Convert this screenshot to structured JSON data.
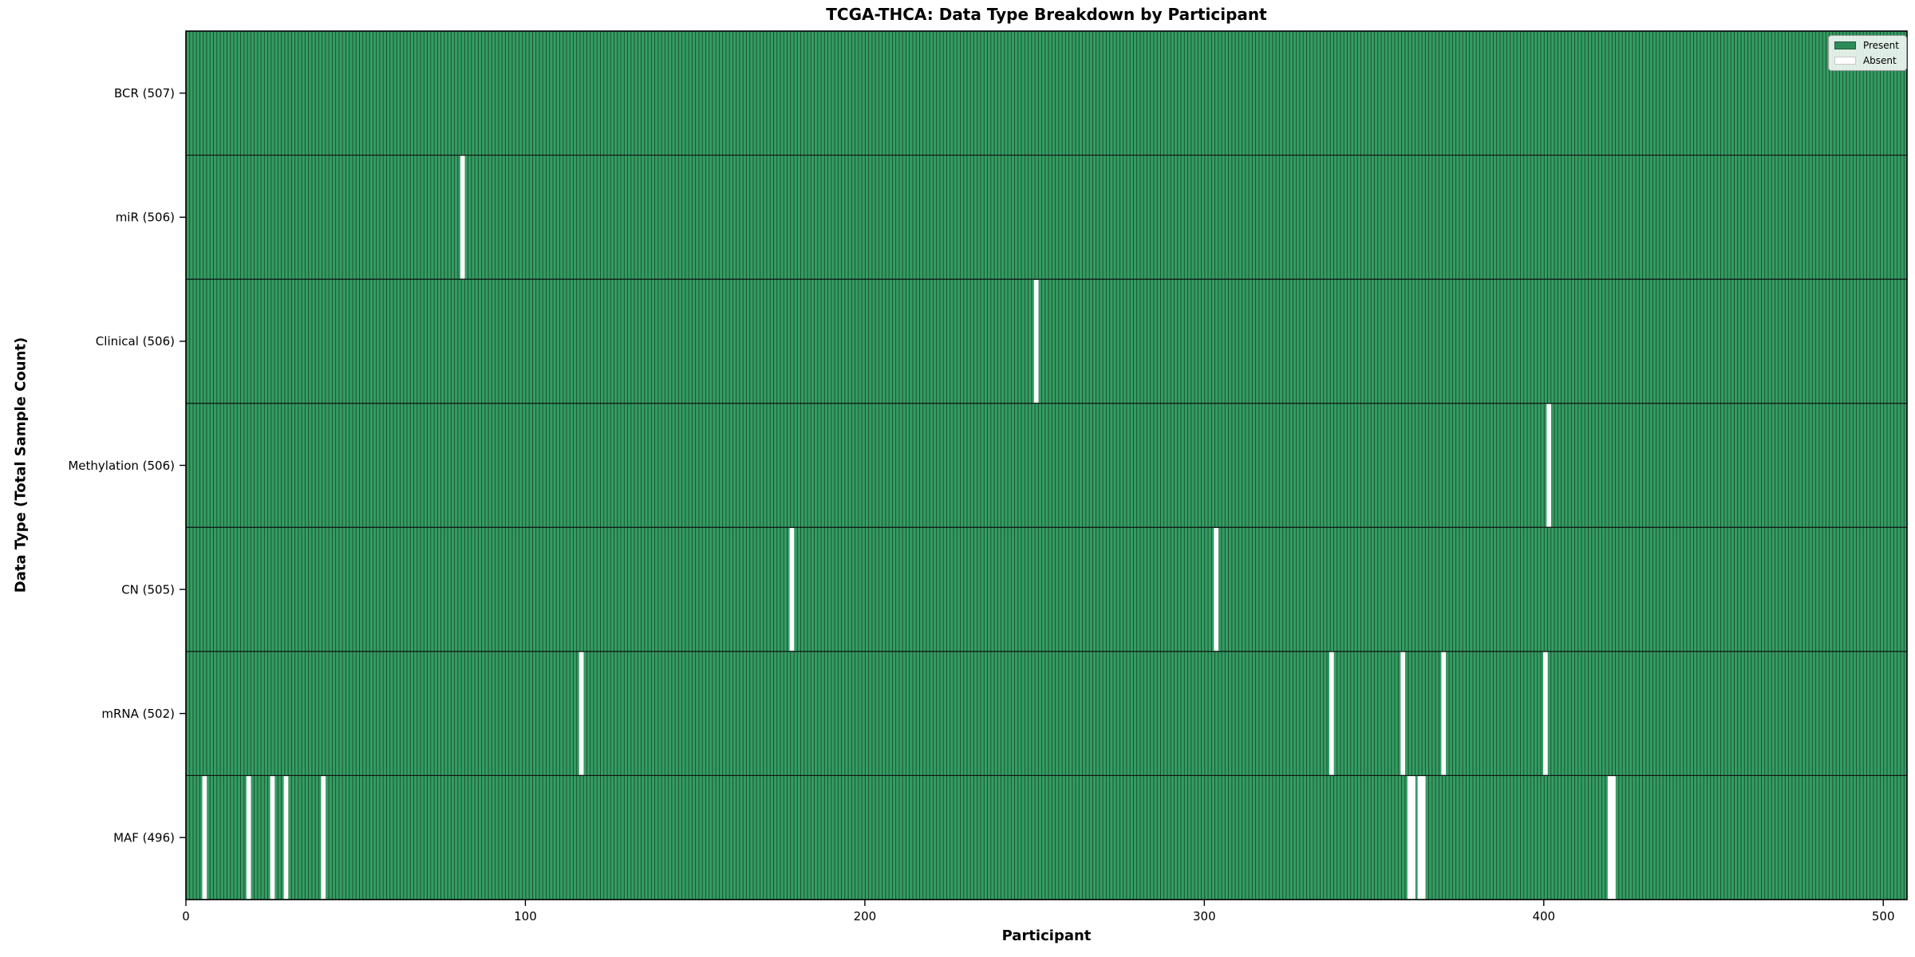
{
  "chart_data": {
    "type": "heatmap",
    "title": "TCGA-THCA: Data Type Breakdown by Participant",
    "xlabel": "Participant",
    "ylabel": "Data Type (Total Sample Count)",
    "x_ticks": [
      0,
      100,
      200,
      300,
      400,
      500
    ],
    "x_range": [
      0,
      507
    ],
    "n_participants": 507,
    "grid": false,
    "legend": {
      "position": "upper right",
      "entries": [
        {
          "label": "Present",
          "color": "#2e8b57",
          "edge": "#1f5e3b"
        },
        {
          "label": "Absent",
          "color": "#ffffff",
          "edge": "#c8c8c8"
        }
      ]
    },
    "rows": [
      {
        "label": "BCR (507)",
        "data_type": "BCR",
        "total": 507,
        "absent_participants": []
      },
      {
        "label": "miR (506)",
        "data_type": "miR",
        "total": 506,
        "absent_participants": [
          81
        ]
      },
      {
        "label": "Clinical (506)",
        "data_type": "Clinical",
        "total": 506,
        "absent_participants": [
          250
        ]
      },
      {
        "label": "Methylation (506)",
        "data_type": "Methylation",
        "total": 506,
        "absent_participants": [
          401
        ]
      },
      {
        "label": "CN (505)",
        "data_type": "CN",
        "total": 505,
        "absent_participants": [
          178,
          303
        ]
      },
      {
        "label": "mRNA (502)",
        "data_type": "mRNA",
        "total": 502,
        "absent_participants": [
          116,
          337,
          358,
          370,
          400
        ]
      },
      {
        "label": "MAF (496)",
        "data_type": "MAF",
        "total": 496,
        "absent_participants": [
          5,
          18,
          25,
          29,
          40,
          360,
          361,
          363,
          364,
          419,
          420
        ]
      }
    ],
    "colors": {
      "present_fill": "#349d62",
      "present_average": "#2e8b57",
      "absent_fill": "#ffffff",
      "cell_edge": "rgba(0,0,0,0.5)",
      "row_separator": "#111111",
      "spine": "#000000",
      "tick": "#000000"
    }
  }
}
